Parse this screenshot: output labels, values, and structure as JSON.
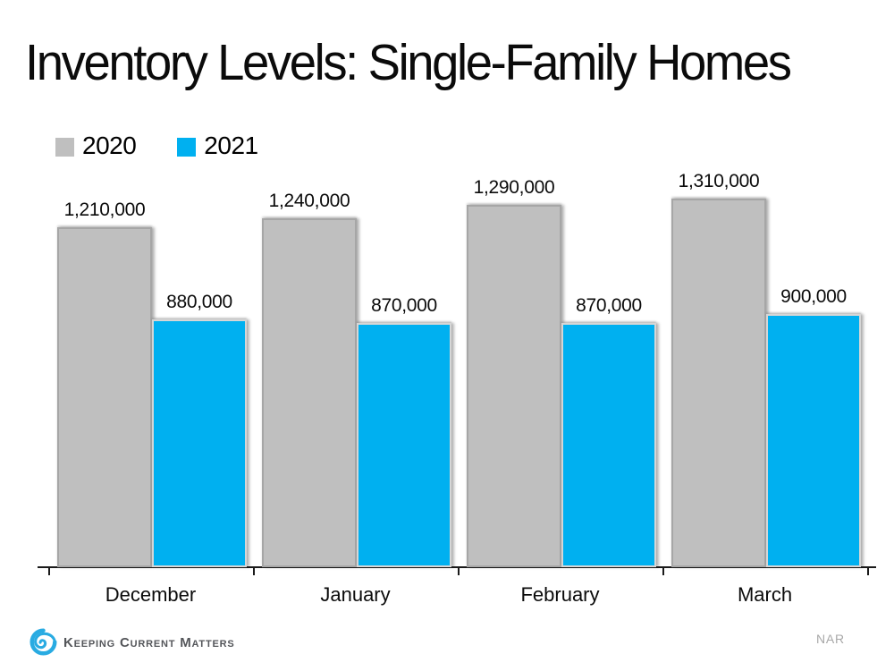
{
  "title": "Inventory Levels: Single-Family Homes",
  "chart_data": {
    "type": "bar",
    "title": "Inventory Levels: Single-Family Homes",
    "categories": [
      "December",
      "January",
      "February",
      "March"
    ],
    "series": [
      {
        "name": "2020",
        "color": "#BFBFBF",
        "values": [
          1210000,
          1240000,
          1290000,
          1310000
        ],
        "labels": [
          "1,210,000",
          "1,240,000",
          "1,290,000",
          "1,310,000"
        ]
      },
      {
        "name": "2021",
        "color": "#00B0F0",
        "values": [
          880000,
          870000,
          870000,
          900000
        ],
        "labels": [
          "880,000",
          "870,000",
          "870,000",
          "900,000"
        ]
      }
    ],
    "xlabel": "",
    "ylabel": "",
    "ylim": [
      0,
      1400000
    ],
    "grid": false,
    "legend_position": "top-left",
    "value_labels": true,
    "axis_color": "#1a1a1a"
  },
  "footer": {
    "brand": "Keeping Current Matters",
    "source": "NAR",
    "brand_color": "#29ABE2",
    "brand_text_color": "#54565A"
  }
}
